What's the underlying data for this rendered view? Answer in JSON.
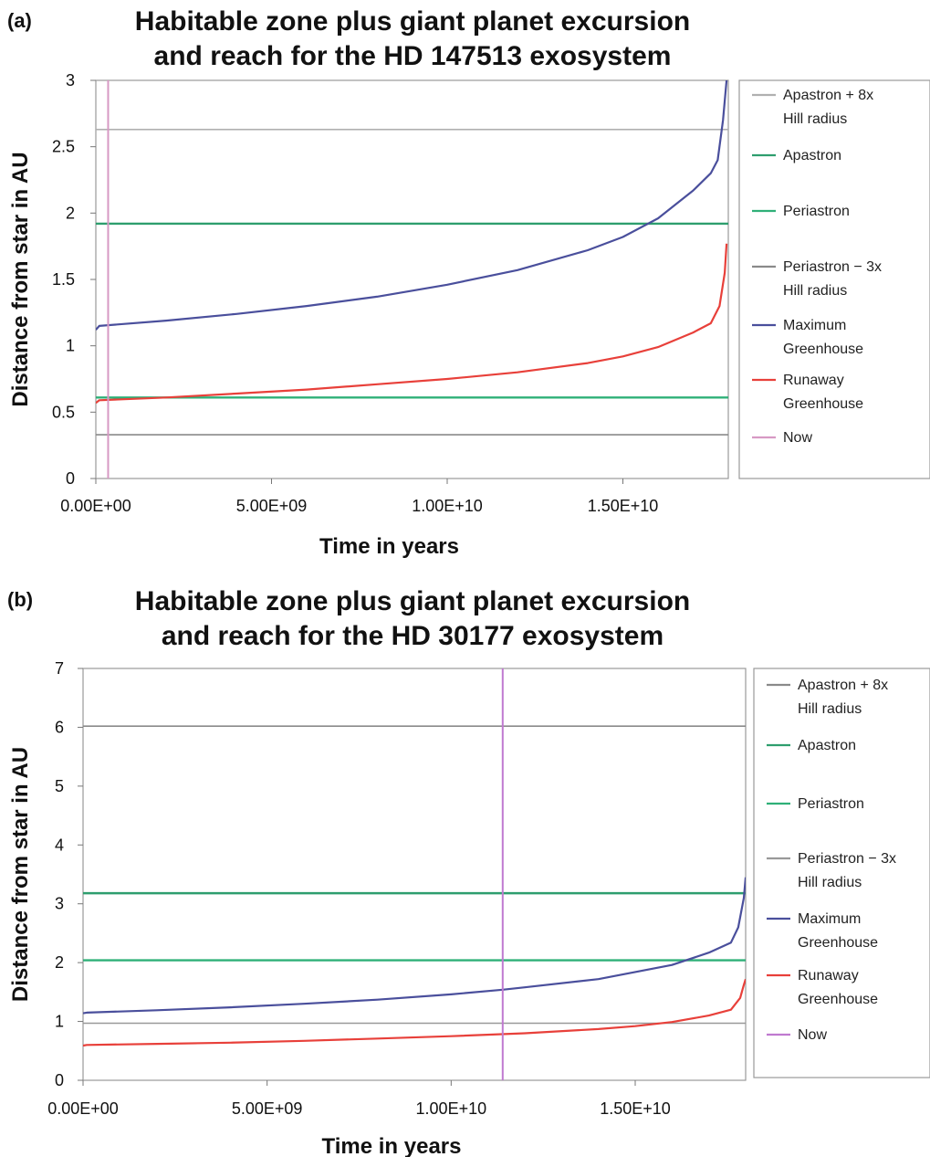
{
  "chart_data": [
    {
      "panel_label": "(a)",
      "type": "line",
      "title_lines": [
        "Habitable zone plus giant planet excursion",
        "and reach for the HD 147513 exosystem"
      ],
      "xlabel": "Time in years",
      "ylabel": "Distance from star in AU",
      "xlim": [
        0,
        18000000000
      ],
      "ylim": [
        0,
        3
      ],
      "x_ticks": [
        0,
        5000000000,
        10000000000,
        15000000000
      ],
      "x_tick_labels": [
        "0.00E+00",
        "5.00E+09",
        "1.00E+10",
        "1.50E+10"
      ],
      "y_ticks": [
        0,
        0.5,
        1,
        1.5,
        2,
        2.5,
        3
      ],
      "y_tick_labels": [
        "0",
        "0.5",
        "1",
        "1.5",
        "2",
        "2.5",
        "3"
      ],
      "legend_position": "right",
      "series": [
        {
          "name": "Apastron + 8x Hill radius",
          "legend_lines": [
            "Apastron + 8x",
            "Hill radius"
          ],
          "color": "#b0b0b0",
          "kind": "hline",
          "y": 2.63
        },
        {
          "name": "Apastron",
          "legend_lines": [
            "Apastron"
          ],
          "color": "#2e9e6e",
          "kind": "hline",
          "y": 1.92
        },
        {
          "name": "Periastron",
          "legend_lines": [
            "Periastron"
          ],
          "color": "#2fb078",
          "kind": "hline",
          "y": 0.61
        },
        {
          "name": "Periastron − 3x Hill radius",
          "legend_lines": [
            "Periastron − 3x",
            "Hill radius"
          ],
          "color": "#8a8a8a",
          "kind": "hline",
          "y": 0.33
        },
        {
          "name": "Maximum Greenhouse",
          "legend_lines": [
            "Maximum",
            "Greenhouse"
          ],
          "color": "#4a4f9c",
          "kind": "curve",
          "x": [
            0,
            100000000,
            2000000000,
            4000000000,
            6000000000,
            8000000000,
            10000000000,
            12000000000,
            14000000000,
            15000000000,
            16000000000,
            17000000000,
            17500000000,
            17700000000,
            17850000000,
            17950000000
          ],
          "y": [
            1.12,
            1.15,
            1.19,
            1.24,
            1.3,
            1.37,
            1.46,
            1.57,
            1.72,
            1.82,
            1.96,
            2.17,
            2.3,
            2.4,
            2.7,
            3.0
          ]
        },
        {
          "name": "Runaway Greenhouse",
          "legend_lines": [
            "Runaway",
            "Greenhouse"
          ],
          "color": "#e8403a",
          "kind": "curve",
          "x": [
            0,
            100000000,
            2000000000,
            4000000000,
            6000000000,
            8000000000,
            10000000000,
            12000000000,
            14000000000,
            15000000000,
            16000000000,
            17000000000,
            17500000000,
            17750000000,
            17900000000,
            17950000000
          ],
          "y": [
            0.57,
            0.59,
            0.61,
            0.64,
            0.67,
            0.71,
            0.75,
            0.8,
            0.87,
            0.92,
            0.99,
            1.1,
            1.17,
            1.3,
            1.55,
            1.77
          ]
        },
        {
          "name": "Now",
          "legend_lines": [
            "Now"
          ],
          "color": "#d799c4",
          "kind": "vline",
          "x": 350000000
        }
      ]
    },
    {
      "panel_label": "(b)",
      "type": "line",
      "title_lines": [
        "Habitable zone plus giant planet excursion",
        "and reach for the HD 30177 exosystem"
      ],
      "xlabel": "Time in years",
      "ylabel": "Distance from star in AU",
      "xlim": [
        0,
        18000000000
      ],
      "ylim": [
        0,
        7
      ],
      "x_ticks": [
        0,
        5000000000,
        10000000000,
        15000000000
      ],
      "x_tick_labels": [
        "0.00E+00",
        "5.00E+09",
        "1.00E+10",
        "1.50E+10"
      ],
      "y_ticks": [
        0,
        1,
        2,
        3,
        4,
        5,
        6,
        7
      ],
      "y_tick_labels": [
        "0",
        "1",
        "2",
        "3",
        "4",
        "5",
        "6",
        "7"
      ],
      "legend_position": "right",
      "series": [
        {
          "name": "Apastron + 8x Hill radius",
          "legend_lines": [
            "Apastron + 8x",
            "Hill radius"
          ],
          "color": "#8a8a8a",
          "kind": "hline",
          "y": 6.02
        },
        {
          "name": "Apastron",
          "legend_lines": [
            "Apastron"
          ],
          "color": "#2e9e6e",
          "kind": "hline",
          "y": 3.18
        },
        {
          "name": "Periastron",
          "legend_lines": [
            "Periastron"
          ],
          "color": "#2fb078",
          "kind": "hline",
          "y": 2.04
        },
        {
          "name": "Periastron − 3x Hill radius",
          "legend_lines": [
            "Periastron − 3x",
            "Hill radius"
          ],
          "color": "#999999",
          "kind": "hline",
          "y": 0.97
        },
        {
          "name": "Maximum Greenhouse",
          "legend_lines": [
            "Maximum",
            "Greenhouse"
          ],
          "color": "#4a4f9c",
          "kind": "curve",
          "x": [
            0,
            100000000,
            2000000000,
            4000000000,
            6000000000,
            8000000000,
            10000000000,
            11400000000,
            12000000000,
            14000000000,
            16000000000,
            17000000000,
            17600000000,
            17800000000,
            17950000000,
            18000000000
          ],
          "y": [
            1.14,
            1.15,
            1.19,
            1.24,
            1.3,
            1.37,
            1.46,
            1.54,
            1.58,
            1.72,
            1.96,
            2.17,
            2.34,
            2.6,
            3.1,
            3.45
          ]
        },
        {
          "name": "Runaway Greenhouse",
          "legend_lines": [
            "Runaway",
            "Greenhouse"
          ],
          "color": "#e8403a",
          "kind": "curve",
          "x": [
            0,
            100000000,
            2000000000,
            4000000000,
            6000000000,
            8000000000,
            10000000000,
            12000000000,
            14000000000,
            15000000000,
            16000000000,
            17000000000,
            17600000000,
            17850000000,
            17950000000,
            18000000000
          ],
          "y": [
            0.59,
            0.6,
            0.62,
            0.64,
            0.67,
            0.71,
            0.75,
            0.8,
            0.87,
            0.92,
            0.99,
            1.1,
            1.2,
            1.4,
            1.62,
            1.72
          ]
        },
        {
          "name": "Now",
          "legend_lines": [
            "Now"
          ],
          "color": "#c07ad0",
          "kind": "vline",
          "x": 11400000000
        }
      ]
    }
  ]
}
